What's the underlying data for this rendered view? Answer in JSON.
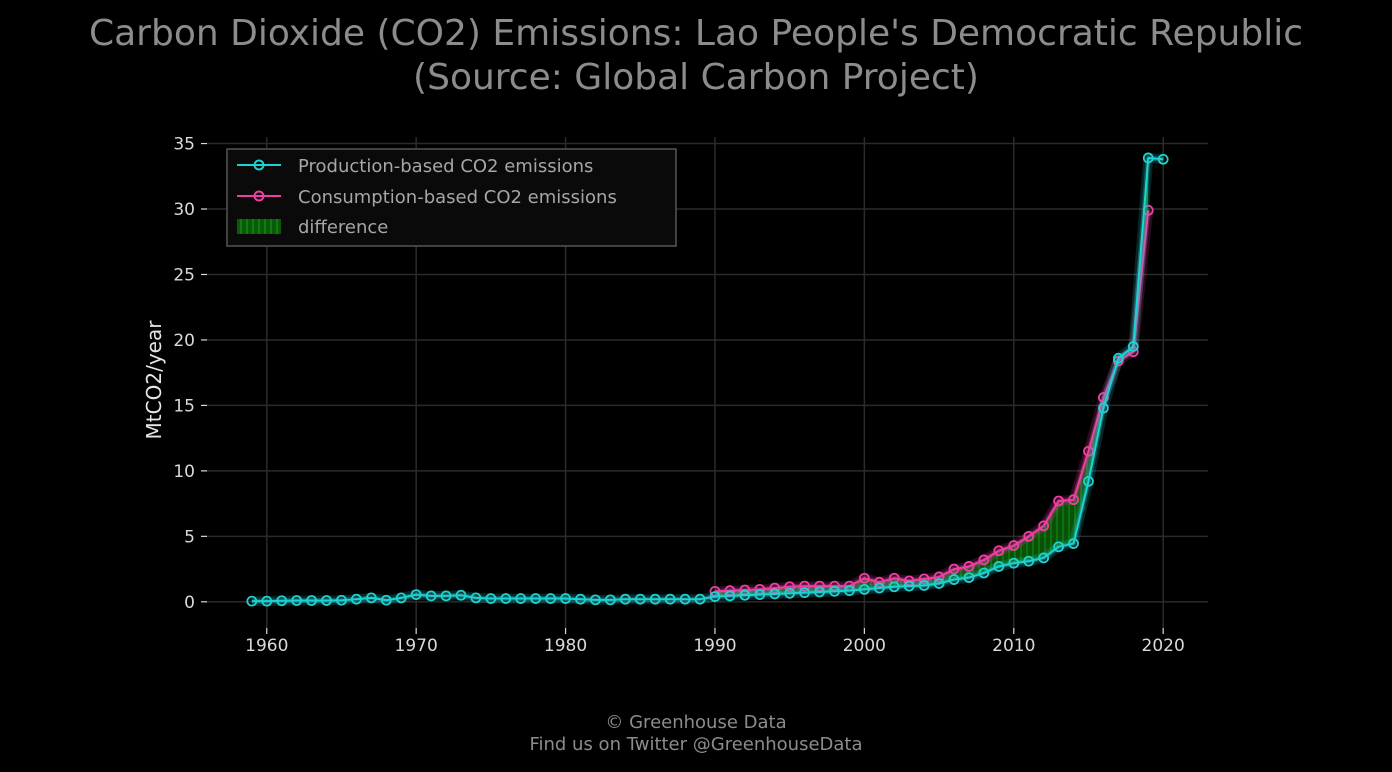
{
  "title_line1": "Carbon Dioxide (CO2) Emissions: Lao People's Democratic Republic",
  "title_line2": "(Source: Global Carbon Project)",
  "footer_line1": "© Greenhouse Data",
  "footer_line2": "Find us on Twitter @GreenhouseData",
  "colors": {
    "background": "#000000",
    "production": "#1fd1d1",
    "consumption": "#ef3fa3",
    "difference": "#0a6b0a",
    "grid": "#2b2b2b"
  },
  "chart_data": {
    "type": "line",
    "ylabel": "MtCO2/year",
    "xlim": [
      1956,
      2023
    ],
    "ylim": [
      -2,
      35.5
    ],
    "xticks": [
      1960,
      1970,
      1980,
      1990,
      2000,
      2010,
      2020
    ],
    "yticks": [
      0,
      5,
      10,
      15,
      20,
      25,
      30,
      35
    ],
    "grid": true,
    "legend_position": "top-left",
    "series": [
      {
        "name": "Production-based CO2 emissions",
        "color": "#1fd1d1",
        "x": [
          1959,
          1960,
          1961,
          1962,
          1963,
          1964,
          1965,
          1966,
          1967,
          1968,
          1969,
          1970,
          1971,
          1972,
          1973,
          1974,
          1975,
          1976,
          1977,
          1978,
          1979,
          1980,
          1981,
          1982,
          1983,
          1984,
          1985,
          1986,
          1987,
          1988,
          1989,
          1990,
          1991,
          1992,
          1993,
          1994,
          1995,
          1996,
          1997,
          1998,
          1999,
          2000,
          2001,
          2002,
          2003,
          2004,
          2005,
          2006,
          2007,
          2008,
          2009,
          2010,
          2011,
          2012,
          2013,
          2014,
          2015,
          2016,
          2017,
          2018,
          2019,
          2020
        ],
        "y": [
          0.05,
          0.05,
          0.08,
          0.1,
          0.1,
          0.1,
          0.12,
          0.2,
          0.3,
          0.12,
          0.3,
          0.55,
          0.45,
          0.45,
          0.5,
          0.3,
          0.25,
          0.25,
          0.25,
          0.25,
          0.25,
          0.25,
          0.2,
          0.15,
          0.15,
          0.2,
          0.2,
          0.2,
          0.2,
          0.2,
          0.2,
          0.4,
          0.45,
          0.5,
          0.55,
          0.6,
          0.65,
          0.7,
          0.75,
          0.8,
          0.85,
          0.95,
          1.05,
          1.15,
          1.2,
          1.25,
          1.4,
          1.7,
          1.85,
          2.2,
          2.7,
          2.95,
          3.1,
          3.35,
          4.2,
          4.45,
          9.2,
          14.8,
          18.6,
          19.5,
          33.9,
          33.8
        ]
      },
      {
        "name": "Consumption-based CO2 emissions",
        "color": "#ef3fa3",
        "x": [
          1990,
          1991,
          1992,
          1993,
          1994,
          1995,
          1996,
          1997,
          1998,
          1999,
          2000,
          2001,
          2002,
          2003,
          2004,
          2005,
          2006,
          2007,
          2008,
          2009,
          2010,
          2011,
          2012,
          2013,
          2014,
          2015,
          2016,
          2017,
          2018,
          2019
        ],
        "y": [
          0.8,
          0.85,
          0.9,
          0.95,
          1.05,
          1.15,
          1.2,
          1.2,
          1.2,
          1.2,
          1.8,
          1.5,
          1.8,
          1.6,
          1.75,
          1.9,
          2.5,
          2.7,
          3.2,
          3.9,
          4.3,
          5.0,
          5.8,
          7.7,
          7.8,
          11.5,
          15.6,
          18.4,
          19.1,
          29.9
        ]
      }
    ],
    "legend": [
      "Production-based CO2 emissions",
      "Consumption-based CO2 emissions",
      "difference"
    ]
  }
}
